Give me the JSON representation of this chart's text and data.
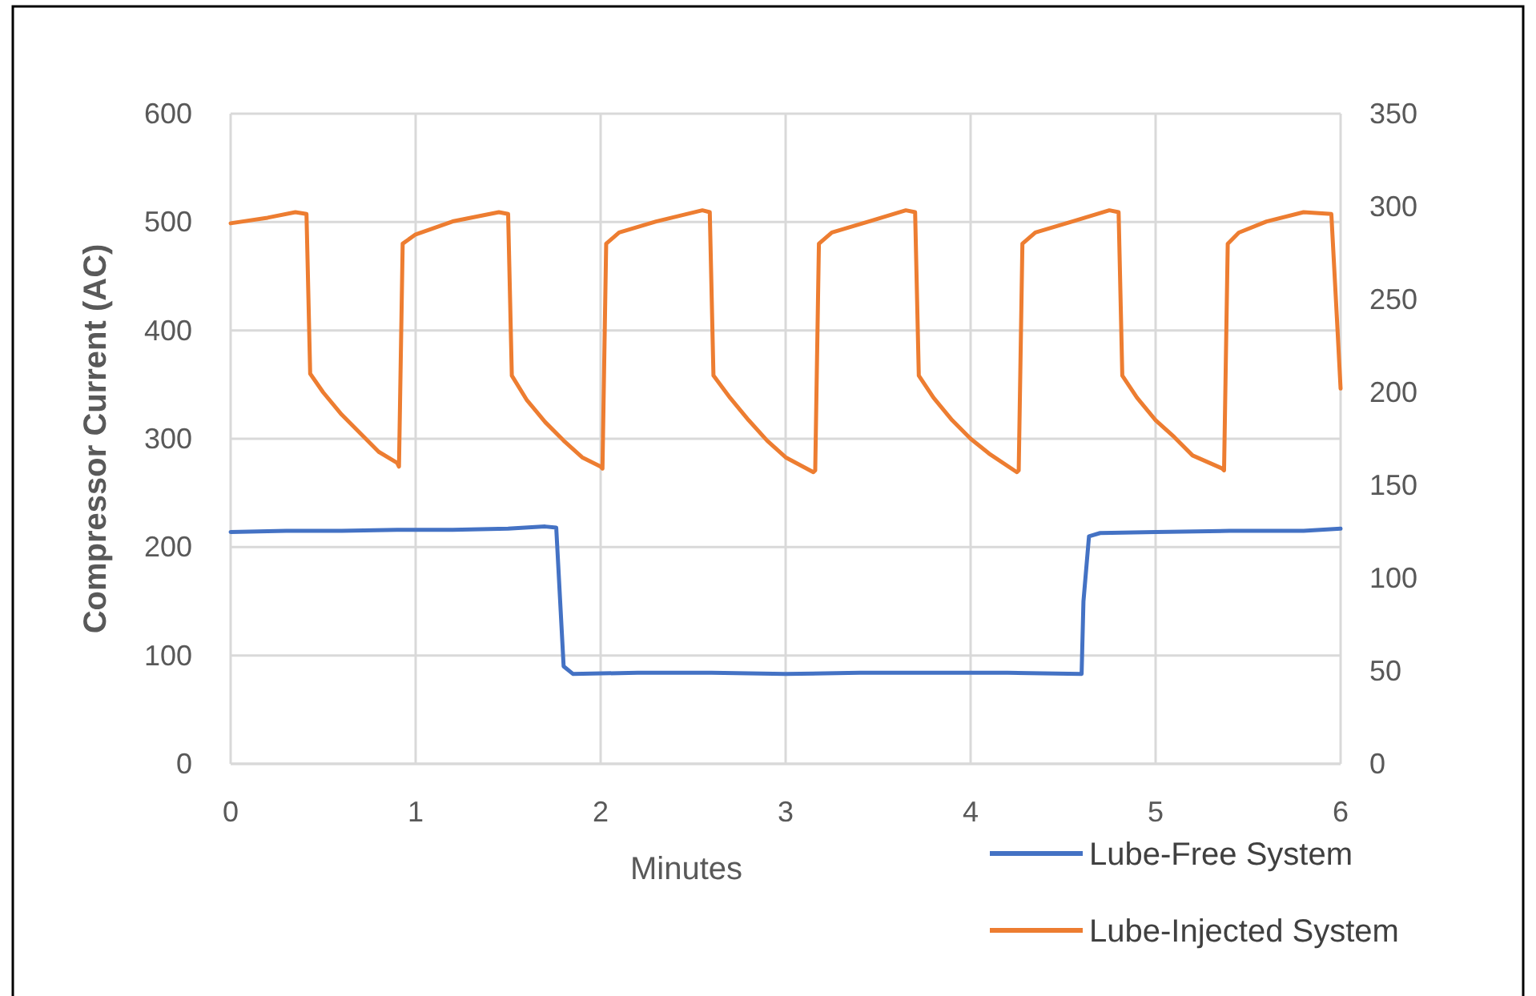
{
  "chart_data": {
    "type": "line",
    "xlabel": "Minutes",
    "ylabel": "Compressor Current (AC)",
    "xlim": [
      0,
      6
    ],
    "xticks": [
      0,
      1,
      2,
      3,
      4,
      5,
      6
    ],
    "ylim": [
      0,
      600
    ],
    "yticks": [
      0,
      100,
      200,
      300,
      400,
      500,
      600
    ],
    "y2lim": [
      0,
      350
    ],
    "y2ticks": [
      0,
      50,
      100,
      150,
      200,
      250,
      300,
      350
    ],
    "grid": true,
    "legend": "bottom right",
    "line_style": "solid",
    "marker": "none",
    "series": [
      {
        "name": "Lube-Free System",
        "color": "#4472c4",
        "x": [
          0,
          0.3,
          0.6,
          0.9,
          1.2,
          1.5,
          1.7,
          1.76,
          1.8,
          1.85,
          2.2,
          2.6,
          3.0,
          3.4,
          3.8,
          4.2,
          4.6,
          4.61,
          4.64,
          4.7,
          5.0,
          5.4,
          5.8,
          6.0
        ],
        "values": [
          214,
          215,
          215,
          216,
          216,
          217,
          219,
          218,
          90,
          83,
          84,
          84,
          83,
          84,
          84,
          84,
          83,
          150,
          210,
          213,
          214,
          215,
          215,
          217
        ]
      },
      {
        "name": "Lube-Injected System",
        "color": "#ed7d31",
        "axis": "y2",
        "x": [
          0,
          0.2,
          0.35,
          0.41,
          0.43,
          0.5,
          0.6,
          0.7,
          0.8,
          0.9,
          0.91,
          0.93,
          1.0,
          1.2,
          1.45,
          1.5,
          1.52,
          1.6,
          1.7,
          1.8,
          1.9,
          2.0,
          2.01,
          2.03,
          2.1,
          2.3,
          2.55,
          2.59,
          2.61,
          2.7,
          2.8,
          2.9,
          3.0,
          3.15,
          3.16,
          3.18,
          3.25,
          3.45,
          3.65,
          3.7,
          3.72,
          3.8,
          3.9,
          4.0,
          4.1,
          4.25,
          4.26,
          4.28,
          4.35,
          4.55,
          4.75,
          4.8,
          4.82,
          4.9,
          5.0,
          5.1,
          5.2,
          5.36,
          5.37,
          5.39,
          5.45,
          5.6,
          5.8,
          5.95,
          5.98,
          6.0
        ],
        "values": [
          291,
          294,
          297,
          296,
          210,
          200,
          188,
          178,
          168,
          162,
          160,
          280,
          285,
          292,
          297,
          296,
          209,
          196,
          184,
          174,
          165,
          160,
          159,
          280,
          286,
          292,
          298,
          297,
          209,
          197,
          185,
          174,
          165,
          157,
          158,
          280,
          286,
          292,
          298,
          297,
          209,
          197,
          185,
          175,
          167,
          157,
          158,
          280,
          286,
          292,
          298,
          297,
          209,
          197,
          185,
          176,
          166,
          159,
          158,
          280,
          286,
          292,
          297,
          296,
          240,
          202
        ]
      }
    ]
  }
}
